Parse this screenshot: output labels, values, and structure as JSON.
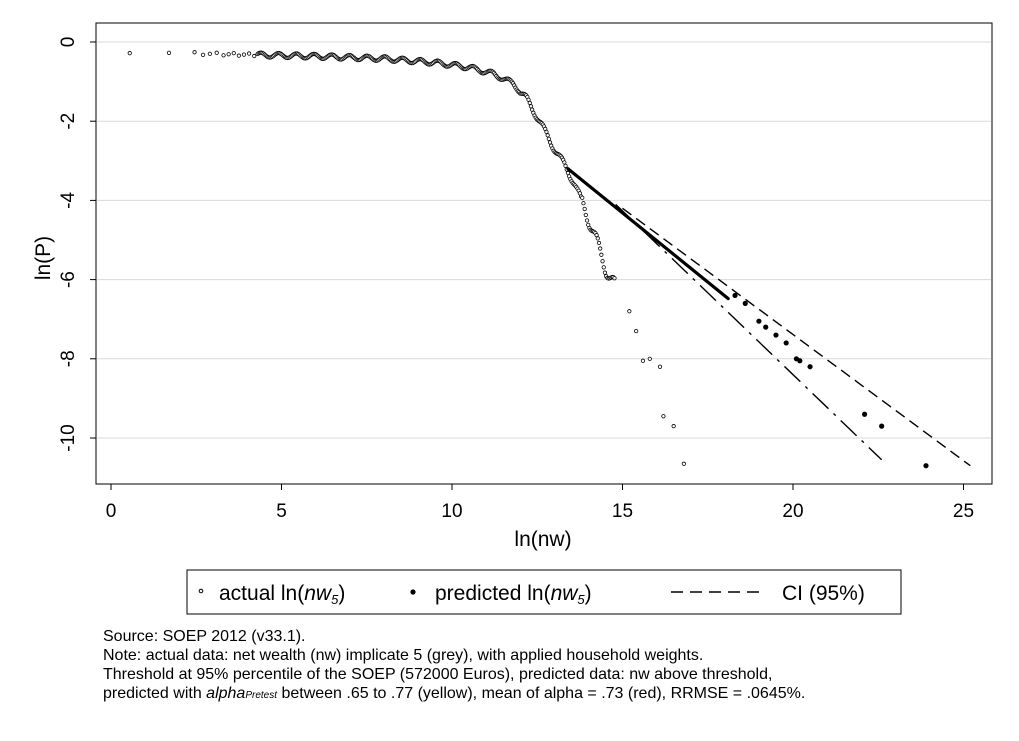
{
  "chart_data": {
    "type": "scatter",
    "xlabel": "ln(nw)",
    "ylabel": "ln(P)",
    "xlim": [
      0,
      25.6
    ],
    "ylim": [
      -11,
      0.5
    ],
    "xticks": [
      0,
      5,
      10,
      15,
      20,
      25
    ],
    "yticks": [
      0,
      -2,
      -4,
      -6,
      -8,
      -10
    ],
    "grid": "horizontal",
    "legend_position": "bottom",
    "series": [
      {
        "name": "actual ln(nw5)",
        "marker": "hollow-circle",
        "curve": [
          [
            0.5,
            -0.25
          ],
          [
            2,
            -0.28
          ],
          [
            4,
            -0.32
          ],
          [
            6,
            -0.36
          ],
          [
            8,
            -0.42
          ],
          [
            9.5,
            -0.52
          ],
          [
            10.5,
            -0.64
          ],
          [
            11.2,
            -0.8
          ],
          [
            11.8,
            -1.05
          ],
          [
            12.2,
            -1.45
          ],
          [
            12.6,
            -2.05
          ],
          [
            13.0,
            -2.7
          ],
          [
            13.3,
            -3.1
          ],
          [
            13.6,
            -3.6
          ],
          [
            13.9,
            -4.2
          ],
          [
            14.2,
            -4.95
          ],
          [
            14.5,
            -5.7
          ],
          [
            14.8,
            -6.2
          ]
        ],
        "outliers": [
          [
            15.2,
            -6.8
          ],
          [
            15.4,
            -7.3
          ],
          [
            15.6,
            -8.05
          ],
          [
            15.8,
            -8.0
          ],
          [
            16.1,
            -8.2
          ],
          [
            16.2,
            -9.45
          ],
          [
            16.5,
            -9.7
          ],
          [
            16.8,
            -10.65
          ]
        ]
      },
      {
        "name": "predicted ln(nw5)",
        "marker": "filled-dot",
        "line": [
          [
            13.4,
            -3.2
          ],
          [
            18.1,
            -6.48
          ]
        ],
        "points": [
          [
            18.3,
            -6.4
          ],
          [
            18.6,
            -6.6
          ],
          [
            19.0,
            -7.05
          ],
          [
            19.2,
            -7.2
          ],
          [
            19.5,
            -7.4
          ],
          [
            19.8,
            -7.6
          ],
          [
            20.1,
            -8.0
          ],
          [
            20.2,
            -8.05
          ],
          [
            20.5,
            -8.2
          ],
          [
            22.1,
            -9.4
          ],
          [
            22.6,
            -9.7
          ],
          [
            23.9,
            -10.7
          ]
        ]
      },
      {
        "name": "CI (95%)",
        "marker": "dashed-line",
        "upper": [
          [
            15.0,
            -4.2
          ],
          [
            25.2,
            -10.7
          ]
        ],
        "lower": [
          [
            14.8,
            -4.1
          ],
          [
            22.6,
            -10.55
          ]
        ]
      }
    ],
    "legend": {
      "actual_prefix": "actual ln(",
      "actual_var": "nw",
      "actual_sub": "5",
      "predicted_prefix": "predicted ln(",
      "predicted_var": "nw",
      "predicted_sub": "5",
      "close": ")",
      "ci_label": "CI (95%)"
    }
  },
  "notes": {
    "source": "Source: SOEP 2012 (v33.1).",
    "line1": "Note: actual data: net wealth (nw) implicate 5 (grey), with applied household weights.",
    "line2": "Threshold at 95% percentile of the SOEP (572000 Euros), predicted data: nw above threshold,",
    "line3_a": "predicted with ",
    "line3_alpha": "alpha",
    "line3_sub": "Pretest",
    "line3_b": " between .65 to .77 (yellow), mean of alpha = .73 (red), RRMSE = .0645%."
  },
  "colors": {
    "frame": "#000000",
    "grid": "#d9d9d9",
    "background": "#ffffff"
  }
}
